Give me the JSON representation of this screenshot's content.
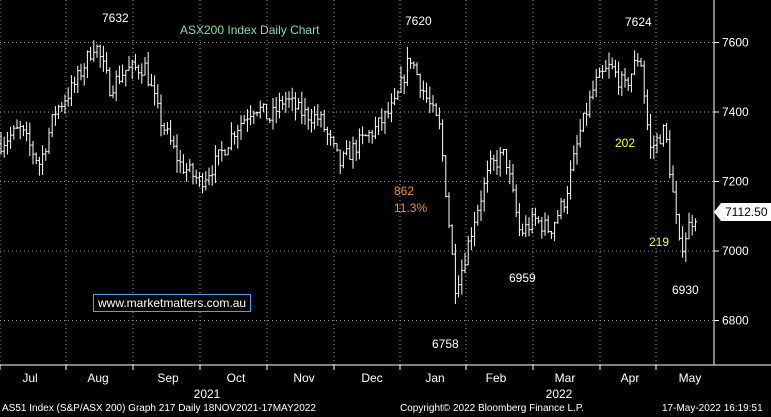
{
  "chart_data": {
    "type": "ohlc",
    "title": "ASX200 Index Daily Chart",
    "y_ticks": [
      6800,
      7000,
      7200,
      7400,
      7600
    ],
    "ylim": [
      6650,
      7700
    ],
    "grid": true,
    "x_month_labels": [
      "Jul",
      "Aug",
      "Sep",
      "Oct",
      "Nov",
      "Dec",
      "Jan",
      "Feb",
      "Mar",
      "Apr",
      "May"
    ],
    "x_year_labels": [
      "2021",
      "2022"
    ],
    "last_price": "7112.50",
    "annotations": {
      "peak_1": "7632",
      "peak_2": "7620",
      "peak_3": "7624",
      "trough_1": "6758",
      "trough_2": "6959",
      "trough_3": "6930",
      "drop_points": "862",
      "drop_pct": "11.3%",
      "rise_points": "202",
      "drop_points_2": "219"
    },
    "series_path": [
      [
        0,
        7310
      ],
      [
        20,
        7350
      ],
      [
        40,
        7250
      ],
      [
        55,
        7400
      ],
      [
        75,
        7480
      ],
      [
        95,
        7600
      ],
      [
        110,
        7470
      ],
      [
        125,
        7520
      ],
      [
        145,
        7530
      ],
      [
        160,
        7380
      ],
      [
        180,
        7250
      ],
      [
        200,
        7200
      ],
      [
        215,
        7250
      ],
      [
        235,
        7350
      ],
      [
        255,
        7420
      ],
      [
        270,
        7380
      ],
      [
        285,
        7440
      ],
      [
        300,
        7400
      ],
      [
        320,
        7380
      ],
      [
        340,
        7250
      ],
      [
        355,
        7300
      ],
      [
        375,
        7350
      ],
      [
        395,
        7420
      ],
      [
        410,
        7560
      ],
      [
        425,
        7450
      ],
      [
        440,
        7350
      ],
      [
        455,
        6900
      ],
      [
        462,
        6950
      ],
      [
        475,
        7100
      ],
      [
        490,
        7240
      ],
      [
        505,
        7280
      ],
      [
        520,
        7050
      ],
      [
        535,
        7090
      ],
      [
        550,
        7060
      ],
      [
        565,
        7150
      ],
      [
        580,
        7340
      ],
      [
        595,
        7480
      ],
      [
        610,
        7530
      ],
      [
        625,
        7470
      ],
      [
        640,
        7570
      ],
      [
        650,
        7290
      ],
      [
        665,
        7350
      ],
      [
        680,
        7000
      ],
      [
        690,
        7080
      ],
      [
        697,
        7112
      ]
    ]
  },
  "watermark": "www.marketmatters.com.au",
  "footer": {
    "left": "AS51 Index (S&P/ASX 200) Graph 217  Daily 18NOV2021-17MAY2022",
    "center": "Copyright© 2022 Bloomberg Finance L.P.",
    "right": "17-May-2022 16:19:51"
  }
}
